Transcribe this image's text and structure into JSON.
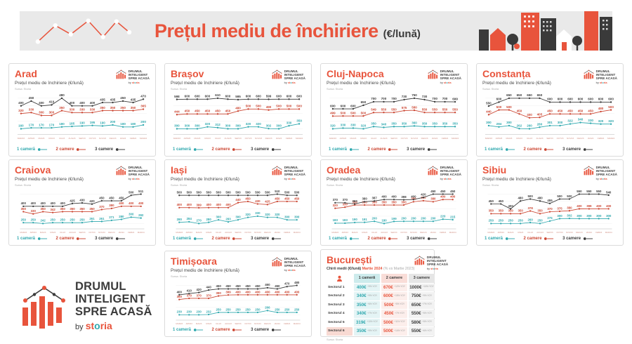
{
  "header": {
    "title": "Prețul mediu de închiriere",
    "suffix": "(€/lună)"
  },
  "logo": {
    "lines": [
      "DRUMUL",
      "INTELIGENT",
      "SPRE ACASĂ"
    ],
    "by": "by",
    "brand": "storia"
  },
  "common": {
    "subtitle": "Prețul mediu de închiriere (€/lună)",
    "source": "Sursa: Storia",
    "legend": [
      {
        "label": "1 cameră",
        "key": "one"
      },
      {
        "label": "2 camere",
        "key": "two"
      },
      {
        "label": "3 camere",
        "key": "three"
      }
    ]
  },
  "colors": {
    "accent": "#E8543C",
    "one": "#2FA8AE",
    "two": "#CC4733",
    "three": "#3B3B3B",
    "header_bg": "#E9E9E9",
    "grid": "#EFEFEF",
    "axis": "#CFCFCF",
    "x_label": "#D39488"
  },
  "chart_data": {
    "type": "line",
    "ylabel": "€/lună",
    "x_labels": [
      "MAR23",
      "APR23",
      "MAI23",
      "IUN23",
      "IUL23",
      "AUG23",
      "SEP23",
      "OCT23",
      "NOV23",
      "DEC23",
      "IAN24",
      "FEB24",
      "MAR24"
    ],
    "charts": [
      {
        "city": "Arad",
        "series": [
          {
            "name": "1 cameră",
            "values": [
              160,
              170,
              170,
              170,
              180,
              185,
              190,
              195,
              190,
              200,
              180,
              180,
              200
            ]
          },
          {
            "name": "2 camere",
            "values": [
              320,
              330,
              300,
              300,
              350,
              330,
              330,
              330,
              350,
              350,
              350,
              350,
              365
            ]
          },
          {
            "name": "3 camere",
            "values": [
              400,
              450,
              400,
              410,
              480,
              400,
              400,
              400,
              435,
              435,
              450,
              435,
              470
            ]
          }
        ]
      },
      {
        "city": "Brașov",
        "series": [
          {
            "name": "1 cameră",
            "values": [
              300,
              300,
              300,
              320,
              312,
              300,
              300,
              320,
              320,
              302,
              300,
              330,
              350
            ]
          },
          {
            "name": "2 camere",
            "values": [
              444,
              450,
              450,
              450,
              450,
              450,
              480,
              500,
              500,
              490,
              500,
              500,
              500
            ]
          },
          {
            "name": "3 camere",
            "values": [
              598,
              600,
              600,
              600,
              610,
              600,
              595,
              600,
              600,
              599,
              600,
              600,
              600
            ]
          }
        ]
      },
      {
        "city": "Cluj-Napoca",
        "series": [
          {
            "name": "1 cameră",
            "values": [
              320,
              330,
              330,
              320,
              350,
              340,
              350,
              350,
              360,
              350,
              350,
              350,
              350
            ]
          },
          {
            "name": "2 camere",
            "values": [
              499,
              500,
              500,
              500,
              549,
              550,
              550,
              575,
              580,
              550,
              550,
              550,
              550
            ]
          },
          {
            "name": "3 camere",
            "values": [
              600,
              600,
              600,
              650,
              700,
              700,
              700,
              730,
              750,
              730,
              700,
              700,
              699
            ]
          }
        ]
      },
      {
        "city": "Constanța",
        "series": [
          {
            "name": "1 cameră",
            "values": [
              300,
              284,
              300,
              262,
              260,
              280,
              301,
              300,
              322,
              340,
              330,
              320,
              320
            ]
          },
          {
            "name": "2 camere",
            "values": [
              440,
              500,
              500,
              450,
              400,
              405,
              450,
              450,
              450,
              450,
              450,
              480,
              500
            ]
          },
          {
            "name": "3 camere",
            "values": [
              550,
              600,
              650,
              650,
              650,
              650,
              600,
              600,
              600,
              600,
              600,
              600,
              600
            ]
          }
        ]
      },
      {
        "city": "Craiova",
        "series": [
          {
            "name": "1 cameră",
            "values": [
              250,
              250,
              242,
              250,
              250,
              250,
              250,
              261,
              261,
              271,
              280,
              300,
              292
            ]
          },
          {
            "name": "2 camere",
            "values": [
              350,
              330,
              350,
              342,
              350,
              350,
              350,
              350,
              370,
              380,
              400,
              400,
              400
            ]
          },
          {
            "name": "3 camere",
            "values": [
              400,
              400,
              400,
              400,
              400,
              425,
              430,
              420,
              450,
              450,
              450,
              500,
              511
            ]
          }
        ]
      },
      {
        "city": "Iași",
        "series": [
          {
            "name": "1 cameră",
            "values": [
              280,
              284,
              270,
              280,
              300,
              283,
              300,
              320,
              330,
              320,
              320,
              300,
              300
            ]
          },
          {
            "name": "2 camere",
            "values": [
              400,
              400,
              399,
              400,
              400,
              400,
              440,
              450,
              430,
              425,
              450,
              450,
              450
            ]
          },
          {
            "name": "3 camere",
            "values": [
              500,
              500,
              500,
              500,
              500,
              500,
              500,
              500,
              500,
              500,
              510,
              500,
              500
            ]
          }
        ]
      },
      {
        "city": "Oradea",
        "series": [
          {
            "name": "1 cameră",
            "values": [
              183,
              183,
              190,
              191,
              200,
              180,
              199,
              200,
              200,
              200,
              200,
              220,
              215
            ]
          },
          {
            "name": "2 camere",
            "values": [
              320,
              330,
              350,
              350,
              350,
              350,
              350,
              350,
              380,
              390,
              380,
              400,
              400
            ]
          },
          {
            "name": "3 camere",
            "values": [
              370,
              370,
              360,
              380,
              387,
              400,
              400,
              398,
              400,
              420,
              450,
              450,
              450
            ]
          }
        ]
      },
      {
        "city": "Sibiu",
        "series": [
          {
            "name": "1 cameră",
            "values": [
              250,
              250,
              250,
              250,
              260,
              250,
              275,
              300,
              302,
              300,
              300,
              300,
              300
            ]
          },
          {
            "name": "2 camere",
            "values": [
              350,
              350,
              350,
              350,
              378,
              350,
              370,
              375,
              380,
              400,
              399,
              400,
              400
            ]
          },
          {
            "name": "3 camere",
            "values": [
              450,
              450,
              400,
              480,
              500,
              480,
              455,
              500,
              500,
              550,
              550,
              550,
              540
            ]
          }
        ]
      },
      {
        "city": "Timișoara",
        "series": [
          {
            "name": "1 cameră",
            "values": [
              230,
              230,
              230,
              232,
              250,
              250,
              250,
              250,
              250,
              266,
              250,
              250,
              250
            ]
          },
          {
            "name": "2 camere",
            "values": [
              360,
              370,
              370,
              370,
              390,
              399,
              400,
              400,
              400,
              400,
              400,
              400,
              400
            ]
          },
          {
            "name": "3 camere",
            "values": [
              400,
              410,
              420,
              440,
              450,
              450,
              450,
              450,
              450,
              460,
              450,
              470,
              480
            ]
          }
        ]
      }
    ],
    "table": {
      "city": "București",
      "subtitle": "Chirii medii (€/lună)",
      "period": "Martie 2024",
      "note": "(% vs Martie 2023)",
      "columns": [
        "1 cameră",
        "2 camere",
        "3 camere"
      ],
      "rows": [
        {
          "label": "Sectorul 1",
          "cells": [
            {
              "price": "400€",
              "pct": "+9% YOY"
            },
            {
              "price": "670€",
              "pct": "+12% YOY"
            },
            {
              "price": "1000€",
              "pct": "+18% YOY"
            }
          ]
        },
        {
          "label": "Sectorul 2",
          "cells": [
            {
              "price": "340€",
              "pct": "+9% YOY"
            },
            {
              "price": "600€",
              "pct": "+15% YOY"
            },
            {
              "price": "750€",
              "pct": "+9% YOY"
            }
          ]
        },
        {
          "label": "Sectorul 3",
          "cells": [
            {
              "price": "350€",
              "pct": "+6% YOY"
            },
            {
              "price": "500€",
              "pct": "+5% YOY"
            },
            {
              "price": "650€",
              "pct": "+7% YOY"
            }
          ]
        },
        {
          "label": "Sectorul 4",
          "cells": [
            {
              "price": "340€",
              "pct": "+7% YOY"
            },
            {
              "price": "450€",
              "pct": "+7% YOY"
            },
            {
              "price": "550€",
              "pct": "+5% YOY"
            }
          ]
        },
        {
          "label": "Sectorul 5",
          "cells": [
            {
              "price": "319€",
              "pct": "+10% YOY"
            },
            {
              "price": "500€",
              "pct": "+11% YOY"
            },
            {
              "price": "580€",
              "pct": "+5% YOY"
            }
          ]
        },
        {
          "label": "Sectorul 6",
          "cells": [
            {
              "price": "350€",
              "pct": "+9% YOY"
            },
            {
              "price": "500€",
              "pct": "+14% YOY"
            },
            {
              "price": "550€",
              "pct": "+6% YOY"
            }
          ]
        }
      ],
      "source": "Sursa: Storia"
    }
  }
}
